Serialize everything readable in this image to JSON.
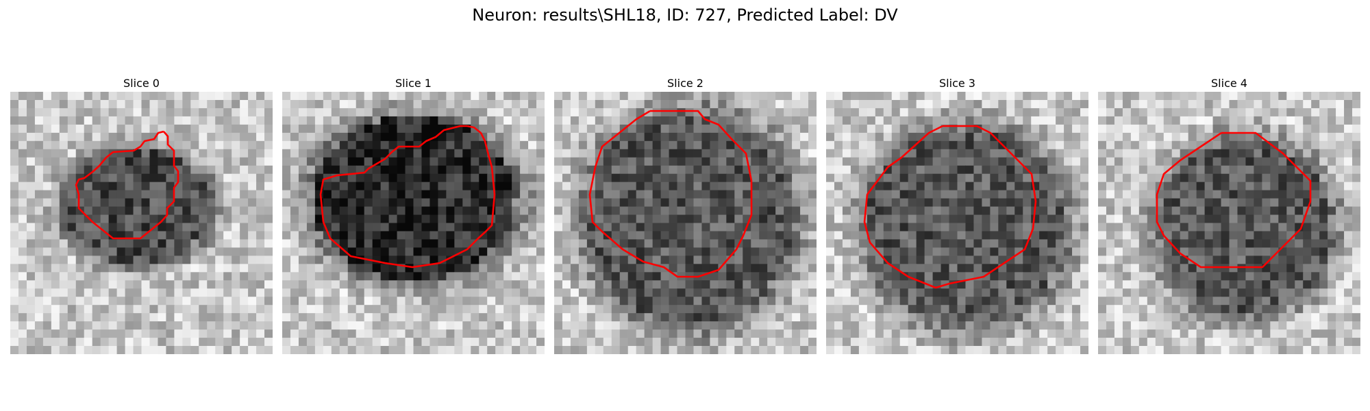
{
  "figure": {
    "title": "Neuron: results\\SHL18, ID: 727, Predicted Label: DV"
  },
  "panels": [
    {
      "title": "Slice 0"
    },
    {
      "title": "Slice 1"
    },
    {
      "title": "Slice 2"
    },
    {
      "title": "Slice 3"
    },
    {
      "title": "Slice 4"
    }
  ],
  "style": {
    "contour_color": "#ff0000",
    "colormap": "gray"
  }
}
